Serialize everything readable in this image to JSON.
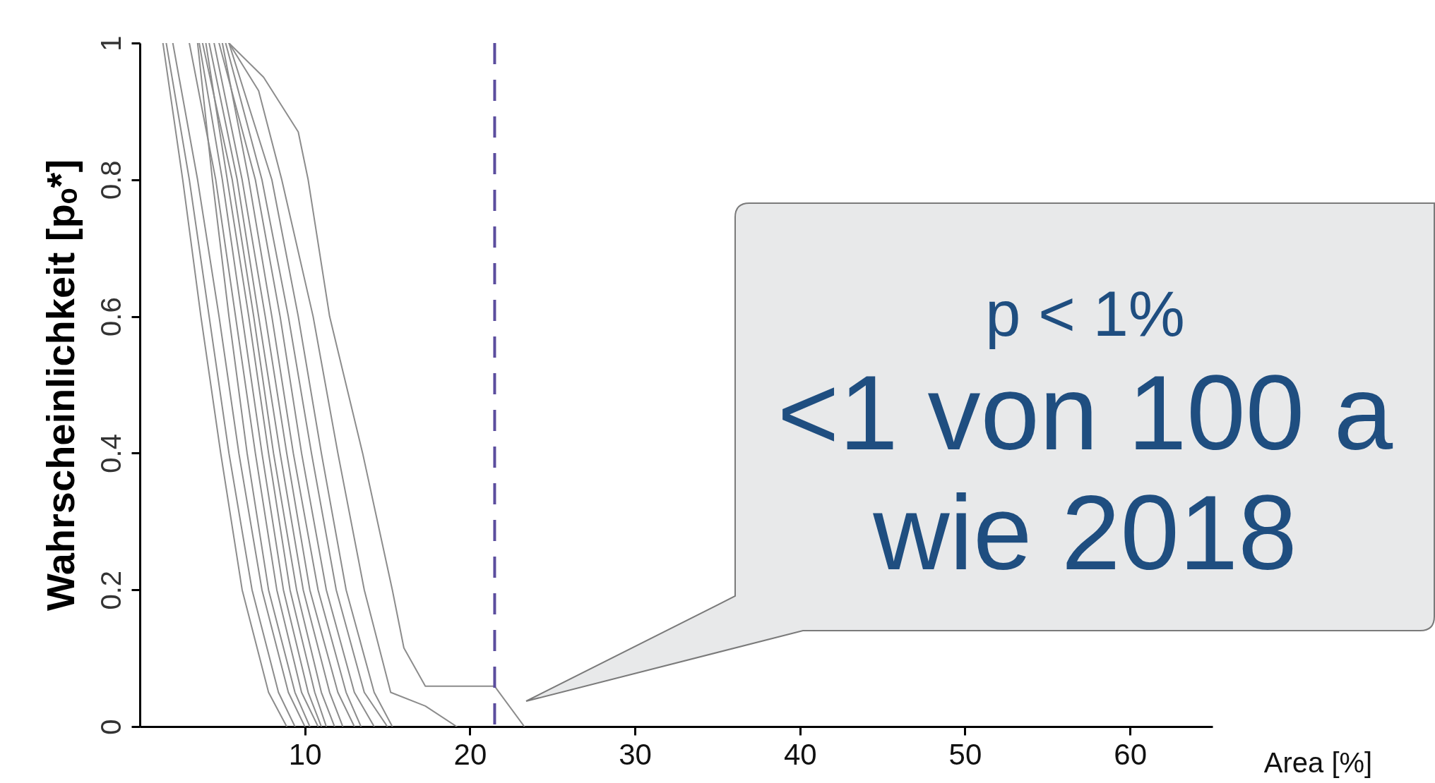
{
  "chart_data": {
    "type": "line",
    "xlabel": "Area [%]",
    "ylabel": "Wahrscheinlichkeit [pₒ*]",
    "xlim": [
      0,
      65
    ],
    "xticks": [
      10,
      20,
      30,
      40,
      50,
      60
    ],
    "ylim": [
      0,
      1
    ],
    "yticks": [
      0,
      0.2,
      0.4,
      0.6,
      0.8,
      1
    ],
    "series": [
      {
        "color": "#8c8c8c",
        "x": [
          1.4,
          2.6,
          3.7,
          4.9,
          6.2,
          7.8,
          8.9
        ],
        "values": [
          1,
          0.8,
          0.6,
          0.4,
          0.2,
          0.05,
          0
        ]
      },
      {
        "color": "#8c8c8c",
        "x": [
          1.6,
          3.0,
          4.2,
          5.4,
          6.8,
          8.4,
          9.4
        ],
        "values": [
          1,
          0.8,
          0.6,
          0.4,
          0.2,
          0.05,
          0
        ]
      },
      {
        "color": "#8c8c8c",
        "x": [
          2.0,
          3.5,
          4.8,
          6.0,
          7.4,
          9.0,
          10.0
        ],
        "values": [
          1,
          0.8,
          0.6,
          0.4,
          0.2,
          0.05,
          0
        ]
      },
      {
        "color": "#8c8c8c",
        "x": [
          3.5,
          4.4,
          5.4,
          6.5,
          7.8,
          9.4,
          10.3
        ],
        "values": [
          1,
          0.8,
          0.6,
          0.4,
          0.2,
          0.05,
          0
        ]
      },
      {
        "color": "#8c8c8c",
        "x": [
          3.0,
          4.6,
          5.8,
          7.0,
          8.3,
          9.8,
          10.8
        ],
        "values": [
          1,
          0.8,
          0.6,
          0.4,
          0.2,
          0.05,
          0
        ]
      },
      {
        "color": "#8c8c8c",
        "x": [
          3.6,
          5.0,
          6.2,
          7.4,
          8.7,
          10.2,
          11.0
        ],
        "values": [
          1,
          0.8,
          0.6,
          0.4,
          0.2,
          0.05,
          0
        ]
      },
      {
        "color": "#8c8c8c",
        "x": [
          4.0,
          5.3,
          6.6,
          7.8,
          9.1,
          10.6,
          11.3
        ],
        "values": [
          1,
          0.8,
          0.6,
          0.4,
          0.2,
          0.05,
          0
        ]
      },
      {
        "color": "#8c8c8c",
        "x": [
          3.8,
          5.6,
          6.9,
          8.1,
          9.5,
          11.0,
          11.8
        ],
        "values": [
          1,
          0.8,
          0.6,
          0.4,
          0.2,
          0.05,
          0
        ]
      },
      {
        "color": "#8c8c8c",
        "x": [
          4.2,
          5.9,
          7.2,
          8.5,
          9.9,
          11.5,
          12.3
        ],
        "values": [
          1,
          0.8,
          0.6,
          0.4,
          0.2,
          0.05,
          0
        ]
      },
      {
        "color": "#8c8c8c",
        "x": [
          4.5,
          6.2,
          7.6,
          8.9,
          10.3,
          12.0,
          13.0
        ],
        "values": [
          1,
          0.8,
          0.6,
          0.4,
          0.2,
          0.05,
          0
        ]
      },
      {
        "color": "#8c8c8c",
        "x": [
          5.0,
          6.6,
          8.0,
          9.3,
          10.8,
          12.5,
          13.4
        ],
        "values": [
          1,
          0.8,
          0.6,
          0.4,
          0.2,
          0.05,
          0
        ]
      },
      {
        "color": "#8c8c8c",
        "x": [
          4.8,
          7.0,
          8.5,
          9.8,
          11.3,
          13.0,
          14.2
        ],
        "values": [
          1,
          0.8,
          0.6,
          0.4,
          0.2,
          0.05,
          0
        ]
      },
      {
        "color": "#8c8c8c",
        "x": [
          5.2,
          7.4,
          9.0,
          10.4,
          11.9,
          13.6,
          15.0
        ],
        "values": [
          1,
          0.8,
          0.6,
          0.4,
          0.2,
          0.05,
          0
        ]
      },
      {
        "color": "#8c8c8c",
        "x": [
          5.4,
          8.0,
          9.6,
          11.0,
          12.5,
          14.2,
          15.3
        ],
        "values": [
          1,
          0.8,
          0.6,
          0.4,
          0.2,
          0.05,
          0
        ]
      },
      {
        "color": "#8c8c8c",
        "x": [
          5.4,
          7.2,
          8.6,
          10.5,
          12.0,
          13.6,
          15.2,
          17.3,
          19.2
        ],
        "values": [
          1,
          0.93,
          0.8,
          0.6,
          0.4,
          0.2,
          0.05,
          0.03,
          0
        ]
      },
      {
        "color": "#8c8c8c",
        "x": [
          5.4,
          7.5,
          9.6,
          10.2,
          11.5,
          13.5,
          15.3,
          16.0,
          17.3,
          21.5,
          23.3
        ],
        "values": [
          1,
          0.95,
          0.87,
          0.8,
          0.6,
          0.4,
          0.2,
          0.115,
          0.059,
          0.059,
          0
        ]
      }
    ],
    "ref_lines": [
      {
        "axis": "x",
        "value": 21.5,
        "color": "#5b4d9e",
        "line_style": "dashed"
      }
    ],
    "annotations": [
      "p < 1%",
      "<1 von 100 a",
      "wie 2018"
    ]
  }
}
